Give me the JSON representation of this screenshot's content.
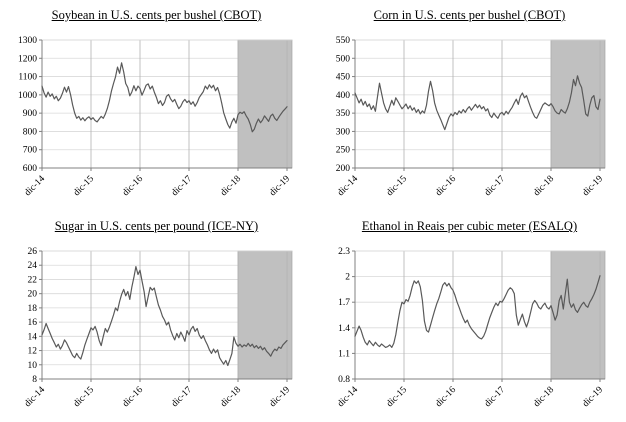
{
  "colors": {
    "background": "#ffffff",
    "line": "#595959",
    "shade": "#c0c0c0",
    "shade_border": "#a6a6a6",
    "grid_h": "#d9d9d9",
    "grid_v": "#b3b3b3",
    "axis": "#808080",
    "text": "#000000"
  },
  "chart_data": [
    {
      "id": "soybean",
      "type": "line",
      "title": "Soybean in U.S. cents per bushel (CBOT)",
      "ylim": [
        600,
        1300
      ],
      "ytick_step": 100,
      "ytick_labels": [
        "600",
        "700",
        "800",
        "900",
        "1000",
        "1100",
        "1200",
        "1300"
      ],
      "x_tick_labels": [
        "dic-14",
        "dic-15",
        "dic-16",
        "dic-17",
        "dic-18",
        "dic-19"
      ],
      "forecast_shade": {
        "from": "dic-18",
        "to": "dic-19"
      },
      "grid": true,
      "legend": "none",
      "values": [
        1048,
        1012,
        988,
        1015,
        992,
        1005,
        978,
        992,
        968,
        982,
        1008,
        1042,
        1015,
        1045,
        1000,
        945,
        900,
        872,
        882,
        862,
        875,
        858,
        872,
        880,
        865,
        875,
        860,
        852,
        868,
        882,
        872,
        895,
        925,
        968,
        1020,
        1062,
        1098,
        1152,
        1118,
        1175,
        1125,
        1062,
        1040,
        995,
        1015,
        1050,
        1022,
        1048,
        1035,
        998,
        1025,
        1052,
        1060,
        1032,
        1048,
        1015,
        988,
        952,
        968,
        942,
        958,
        992,
        1002,
        978,
        962,
        975,
        948,
        925,
        938,
        962,
        975,
        958,
        968,
        948,
        962,
        938,
        958,
        985,
        1002,
        1018,
        1048,
        1032,
        1055,
        1038,
        1052,
        1022,
        1040,
        1005,
        955,
        902,
        868,
        838,
        818,
        852,
        872,
        845,
        892,
        905,
        898,
        908,
        885,
        868,
        838,
        798,
        812,
        845,
        868,
        848,
        862,
        885,
        870,
        855,
        885,
        895,
        872,
        860,
        878,
        895,
        910,
        922,
        935
      ]
    },
    {
      "id": "corn",
      "type": "line",
      "title": "Corn in U.S. cents per bushel (CBOT)",
      "ylim": [
        200,
        550
      ],
      "ytick_step": 50,
      "ytick_labels": [
        "200",
        "250",
        "300",
        "350",
        "400",
        "450",
        "500",
        "550"
      ],
      "x_tick_labels": [
        "dic-14",
        "dic-15",
        "dic-16",
        "dic-17",
        "dic-18",
        "dic-19"
      ],
      "forecast_shade": {
        "from": "dic-18",
        "to": "dic-19"
      },
      "grid": true,
      "legend": "none",
      "values": [
        405,
        392,
        378,
        388,
        372,
        382,
        368,
        375,
        360,
        370,
        355,
        395,
        432,
        405,
        378,
        362,
        352,
        368,
        385,
        372,
        392,
        382,
        372,
        362,
        368,
        375,
        362,
        370,
        358,
        365,
        352,
        360,
        348,
        356,
        350,
        372,
        410,
        437,
        412,
        378,
        358,
        345,
        332,
        318,
        305,
        322,
        338,
        348,
        342,
        352,
        346,
        356,
        350,
        360,
        352,
        362,
        368,
        358,
        366,
        374,
        365,
        372,
        362,
        368,
        356,
        362,
        345,
        338,
        350,
        342,
        336,
        348,
        352,
        345,
        355,
        348,
        358,
        366,
        378,
        388,
        374,
        396,
        405,
        392,
        398,
        382,
        366,
        352,
        340,
        336,
        348,
        360,
        372,
        378,
        374,
        370,
        376,
        368,
        356,
        350,
        348,
        360,
        354,
        350,
        362,
        380,
        405,
        442,
        425,
        452,
        432,
        420,
        385,
        348,
        342,
        372,
        392,
        398,
        368,
        360,
        388
      ]
    },
    {
      "id": "sugar",
      "type": "line",
      "title": "Sugar in U.S. cents per pound (ICE-NY)",
      "ylim": [
        8,
        26
      ],
      "ytick_step": 2,
      "ytick_labels": [
        "8",
        "10",
        "12",
        "14",
        "16",
        "18",
        "20",
        "22",
        "24",
        "26"
      ],
      "x_tick_labels": [
        "dic-14",
        "dic-15",
        "dic-16",
        "dic-17",
        "dic-18",
        "dic-19"
      ],
      "forecast_shade": {
        "from": "dic-18",
        "to": "dic-19"
      },
      "grid": true,
      "legend": "none",
      "values": [
        14.2,
        14.9,
        15.8,
        15.1,
        14.4,
        13.7,
        13.1,
        12.5,
        12.9,
        12.2,
        12.7,
        13.5,
        13.1,
        12.5,
        11.9,
        11.3,
        11.0,
        11.6,
        11.1,
        10.8,
        11.7,
        12.8,
        13.6,
        14.4,
        15.2,
        14.9,
        15.4,
        14.6,
        13.4,
        12.7,
        14.0,
        15.1,
        14.6,
        15.3,
        16.1,
        17.0,
        18.0,
        17.6,
        18.9,
        19.9,
        20.6,
        19.7,
        20.3,
        19.2,
        20.9,
        22.3,
        23.8,
        22.7,
        23.3,
        21.8,
        20.3,
        18.2,
        19.6,
        20.9,
        20.5,
        20.8,
        19.6,
        18.4,
        17.7,
        16.8,
        16.3,
        15.6,
        16.0,
        14.9,
        14.1,
        13.5,
        14.4,
        13.8,
        14.6,
        14.0,
        13.3,
        14.8,
        14.2,
        15.0,
        15.4,
        14.7,
        15.1,
        14.2,
        13.7,
        14.1,
        13.4,
        12.8,
        12.1,
        11.6,
        12.2,
        11.7,
        12.1,
        11.0,
        10.5,
        10.1,
        10.6,
        9.9,
        10.7,
        11.6,
        13.9,
        13.0,
        12.6,
        12.9,
        12.5,
        12.8,
        12.6,
        13.0,
        12.6,
        12.9,
        12.4,
        12.7,
        12.3,
        12.6,
        12.1,
        12.4,
        11.9,
        11.6,
        11.2,
        11.8,
        12.2,
        12.0,
        12.5,
        12.3,
        12.8,
        13.1,
        13.4
      ]
    },
    {
      "id": "ethanol",
      "type": "line",
      "title": "Ethanol in Reais per cubic meter (ESALQ)",
      "ylim": [
        0.8,
        2.3
      ],
      "ytick_step": 0.3,
      "ytick_labels": [
        "0.8",
        "1.1",
        "1.4",
        "1.7",
        "2",
        "2.3"
      ],
      "x_tick_labels": [
        "dic-14",
        "dic-15",
        "dic-16",
        "dic-17",
        "dic-18",
        "dic-19"
      ],
      "forecast_shade": {
        "from": "dic-18",
        "to": "dic-19"
      },
      "grid": true,
      "legend": "none",
      "values": [
        1.3,
        1.36,
        1.42,
        1.37,
        1.29,
        1.23,
        1.2,
        1.25,
        1.22,
        1.19,
        1.23,
        1.2,
        1.18,
        1.21,
        1.19,
        1.17,
        1.18,
        1.2,
        1.17,
        1.22,
        1.32,
        1.47,
        1.6,
        1.7,
        1.68,
        1.73,
        1.71,
        1.78,
        1.88,
        1.95,
        1.92,
        1.95,
        1.88,
        1.72,
        1.48,
        1.37,
        1.35,
        1.43,
        1.52,
        1.6,
        1.68,
        1.74,
        1.82,
        1.9,
        1.93,
        1.89,
        1.92,
        1.87,
        1.84,
        1.78,
        1.7,
        1.64,
        1.57,
        1.51,
        1.46,
        1.49,
        1.43,
        1.39,
        1.36,
        1.33,
        1.3,
        1.28,
        1.27,
        1.3,
        1.36,
        1.44,
        1.52,
        1.58,
        1.64,
        1.69,
        1.66,
        1.71,
        1.7,
        1.74,
        1.79,
        1.84,
        1.87,
        1.85,
        1.8,
        1.55,
        1.43,
        1.5,
        1.56,
        1.47,
        1.41,
        1.48,
        1.58,
        1.68,
        1.72,
        1.69,
        1.64,
        1.62,
        1.66,
        1.69,
        1.64,
        1.62,
        1.66,
        1.58,
        1.49,
        1.55,
        1.72,
        1.78,
        1.62,
        1.8,
        1.97,
        1.7,
        1.64,
        1.68,
        1.61,
        1.58,
        1.63,
        1.67,
        1.7,
        1.66,
        1.64,
        1.7,
        1.74,
        1.79,
        1.85,
        1.93,
        2.01
      ]
    }
  ]
}
